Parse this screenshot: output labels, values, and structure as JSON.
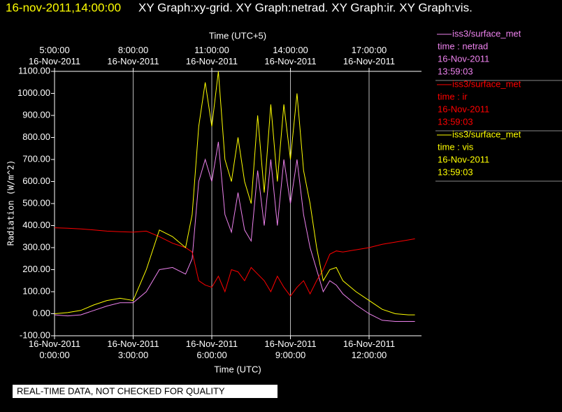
{
  "chart_data": {
    "type": "line",
    "title_time": "16-nov-2011,14:00:00",
    "title": "XY Graph:xy-grid.  XY Graph:netrad.  XY Graph:ir.  XY Graph:vis.",
    "xlabel": "Time (UTC)",
    "x2label": "Time (UTC+5)",
    "ylabel": "Radiation (W/m^2)",
    "footer": "REAL-TIME DATA, NOT CHECKED FOR QUALITY",
    "x": [
      "0:00",
      "0:30",
      "1:00",
      "1:30",
      "2:00",
      "2:30",
      "3:00",
      "3:30",
      "4:00",
      "4:30",
      "5:00",
      "5:15",
      "5:30",
      "5:45",
      "6:00",
      "6:15",
      "6:30",
      "6:45",
      "7:00",
      "7:15",
      "7:30",
      "7:45",
      "8:00",
      "8:15",
      "8:30",
      "8:45",
      "9:00",
      "9:15",
      "9:30",
      "9:45",
      "10:00",
      "10:15",
      "10:30",
      "10:45",
      "11:00",
      "11:30",
      "12:00",
      "12:30",
      "13:00",
      "13:30",
      "13:45"
    ],
    "xlim": [
      "0:00",
      "14:00"
    ],
    "xticks": [
      {
        "value": "0:00",
        "label": "16-Nov-2011\n0:00:00"
      },
      {
        "value": "3:00",
        "label": "16-Nov-2011\n3:00:00"
      },
      {
        "value": "6:00",
        "label": "16-Nov-2011\n6:00:00"
      },
      {
        "value": "9:00",
        "label": "16-Nov-2011\n9:00:00"
      },
      {
        "value": "12:00",
        "label": "16-Nov-2011\n12:00:00"
      }
    ],
    "x2ticks": [
      {
        "value": "0:00",
        "label": "5:00:00\n16-Nov-2011"
      },
      {
        "value": "3:00",
        "label": "8:00:00\n16-Nov-2011"
      },
      {
        "value": "6:00",
        "label": "11:00:00\n16-Nov-2011"
      },
      {
        "value": "9:00",
        "label": "14:00:00\n16-Nov-2011"
      },
      {
        "value": "12:00",
        "label": "17:00:00\n16-Nov-2011"
      }
    ],
    "ylim": [
      -100,
      1100
    ],
    "yticks": [
      {
        "value": -100,
        "label": "-100.00"
      },
      {
        "value": 0,
        "label": "0.00"
      },
      {
        "value": 100,
        "label": "100.00"
      },
      {
        "value": 200,
        "label": "200.00"
      },
      {
        "value": 300,
        "label": "300.00"
      },
      {
        "value": 400,
        "label": "400.00"
      },
      {
        "value": 500,
        "label": "500.00"
      },
      {
        "value": 600,
        "label": "600.00"
      },
      {
        "value": 700,
        "label": "700.00"
      },
      {
        "value": 800,
        "label": "800.00"
      },
      {
        "value": 900,
        "label": "900.00"
      },
      {
        "value": 1000,
        "label": "1000.00"
      },
      {
        "value": 1100,
        "label": "1100.00"
      }
    ],
    "grid_x": true,
    "series": [
      {
        "name": "iss3/surface_met",
        "variable": "time : netrad",
        "date": "16-Nov-2011",
        "time": "13:59:03",
        "color": "#ee82ee",
        "values": [
          -5,
          -10,
          -5,
          15,
          35,
          50,
          50,
          100,
          200,
          210,
          180,
          250,
          600,
          700,
          600,
          780,
          450,
          370,
          550,
          380,
          330,
          650,
          400,
          700,
          400,
          700,
          500,
          700,
          450,
          300,
          200,
          100,
          150,
          130,
          90,
          40,
          0,
          -30,
          -35,
          -35,
          -35
        ]
      },
      {
        "name": "iss3/surface_met",
        "variable": "time : ir",
        "date": "16-Nov-2011",
        "time": "13:59:03",
        "color": "#ff0000",
        "values": [
          390,
          388,
          385,
          380,
          375,
          372,
          370,
          375,
          350,
          320,
          300,
          280,
          150,
          130,
          120,
          170,
          100,
          200,
          190,
          150,
          210,
          180,
          150,
          100,
          170,
          120,
          80,
          120,
          150,
          90,
          150,
          200,
          270,
          285,
          280,
          290,
          300,
          315,
          325,
          335,
          340
        ]
      },
      {
        "name": "iss3/surface_met",
        "variable": "time : vis",
        "date": "16-Nov-2011",
        "time": "13:59:03",
        "color": "#ffff00",
        "values": [
          0,
          5,
          15,
          40,
          60,
          70,
          60,
          200,
          380,
          350,
          300,
          450,
          850,
          1050,
          850,
          1100,
          700,
          600,
          800,
          600,
          500,
          900,
          550,
          950,
          600,
          950,
          700,
          1000,
          650,
          500,
          300,
          150,
          200,
          210,
          150,
          100,
          60,
          20,
          0,
          -5,
          -5
        ]
      }
    ]
  }
}
